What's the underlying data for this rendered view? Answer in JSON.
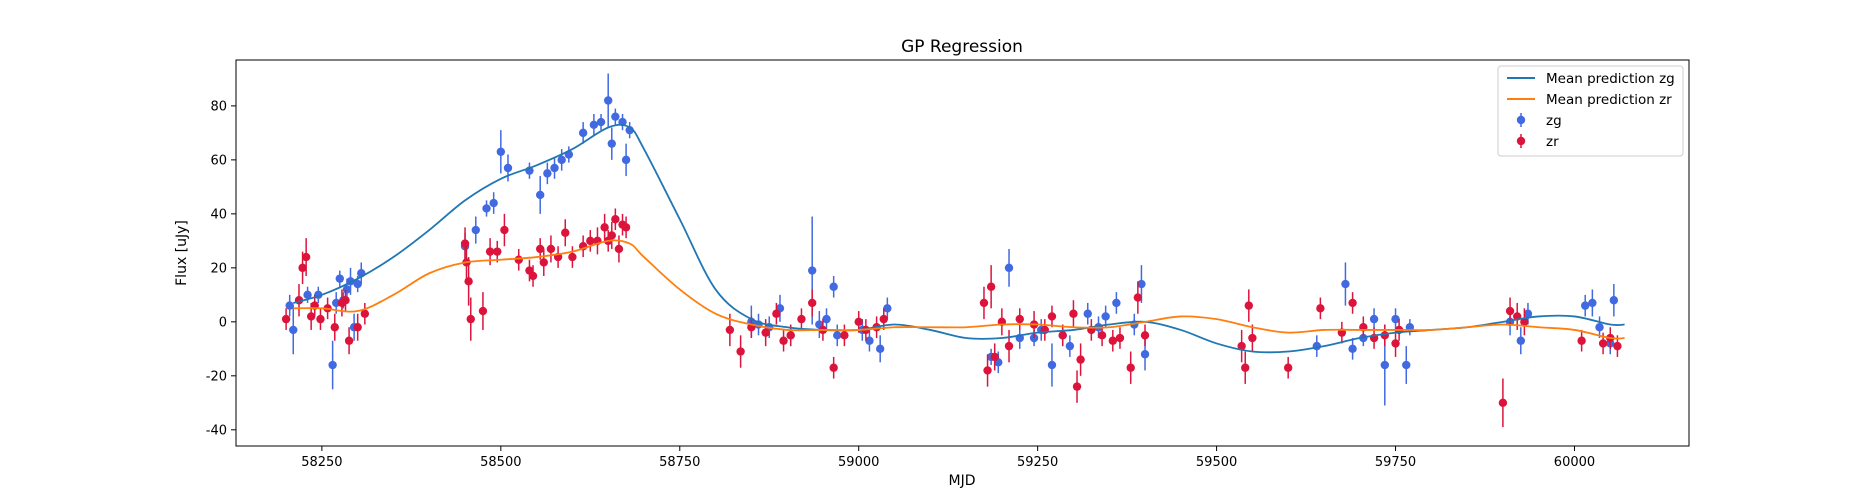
{
  "chart_data": {
    "type": "scatter",
    "title": "GP Regression",
    "xlabel": "MJD",
    "ylabel": "Flux [uJy]",
    "xlim": [
      58130,
      60160
    ],
    "ylim": [
      -46,
      97
    ],
    "xticks": [
      58250,
      58500,
      58750,
      59000,
      59250,
      59500,
      59750,
      60000
    ],
    "yticks": [
      -40,
      -20,
      0,
      20,
      40,
      60,
      80
    ],
    "grid": false,
    "legend_position": "top-right",
    "colors": {
      "zg_mean": "#1f77b4",
      "zr_mean": "#ff7f0e",
      "zg": "#4169e1",
      "zr": "#dc143c"
    },
    "mean_predictions": [
      {
        "name": "Mean prediction zg",
        "color": "#1f77b4",
        "x": [
          58210,
          58250,
          58300,
          58350,
          58400,
          58450,
          58500,
          58550,
          58600,
          58650,
          58680,
          58700,
          58750,
          58800,
          58850,
          58900,
          58950,
          59000,
          59050,
          59100,
          59150,
          59200,
          59250,
          59300,
          59350,
          59400,
          59450,
          59500,
          59550,
          59600,
          59650,
          59700,
          59750,
          59800,
          59850,
          59900,
          59950,
          60000,
          60050,
          60070
        ],
        "y": [
          7,
          10,
          16,
          24,
          34,
          45,
          53,
          58,
          64,
          72,
          72,
          64,
          38,
          12,
          1,
          -2,
          -3,
          -3,
          -1,
          -3,
          -6,
          -6,
          -4,
          -3,
          -1,
          0,
          -3,
          -8,
          -11,
          -11,
          -9,
          -6,
          -4,
          -3,
          -2,
          0,
          2,
          2,
          -1,
          -1
        ]
      },
      {
        "name": "Mean prediction zr",
        "color": "#ff7f0e",
        "x": [
          58210,
          58250,
          58300,
          58350,
          58400,
          58450,
          58500,
          58550,
          58600,
          58650,
          58680,
          58700,
          58750,
          58800,
          58850,
          58900,
          58950,
          59000,
          59050,
          59100,
          59150,
          59200,
          59250,
          59300,
          59350,
          59400,
          59450,
          59500,
          59550,
          59600,
          59650,
          59700,
          59750,
          59800,
          59850,
          59900,
          59950,
          60000,
          60050,
          60070
        ],
        "y": [
          5,
          5,
          4,
          10,
          18,
          22,
          23,
          24,
          26,
          30,
          29,
          24,
          12,
          3,
          -1,
          -3,
          -3,
          -3,
          -2,
          -2,
          -2,
          -1,
          -1,
          -2,
          -2,
          0,
          2,
          1,
          -2,
          -4,
          -3,
          -3,
          -3,
          -3,
          -2,
          -1,
          -2,
          -3,
          -6,
          -6
        ]
      }
    ],
    "series": [
      {
        "name": "zg",
        "color": "#4169e1",
        "points": [
          [
            58205,
            6,
            4
          ],
          [
            58210,
            -3,
            9
          ],
          [
            58230,
            10,
            3
          ],
          [
            58245,
            10,
            3
          ],
          [
            58265,
            -16,
            9
          ],
          [
            58270,
            7,
            4
          ],
          [
            58275,
            16,
            3
          ],
          [
            58280,
            8,
            3
          ],
          [
            58285,
            12,
            4
          ],
          [
            58290,
            15,
            5
          ],
          [
            58295,
            -2,
            5
          ],
          [
            58300,
            14,
            3
          ],
          [
            58305,
            18,
            4
          ],
          [
            58450,
            28,
            5
          ],
          [
            58465,
            34,
            5
          ],
          [
            58480,
            42,
            3
          ],
          [
            58490,
            44,
            4
          ],
          [
            58500,
            63,
            8
          ],
          [
            58510,
            57,
            5
          ],
          [
            58540,
            56,
            3
          ],
          [
            58555,
            47,
            7
          ],
          [
            58565,
            55,
            4
          ],
          [
            58575,
            57,
            4
          ],
          [
            58585,
            60,
            4
          ],
          [
            58595,
            62,
            3
          ],
          [
            58615,
            70,
            4
          ],
          [
            58630,
            73,
            4
          ],
          [
            58640,
            74,
            3
          ],
          [
            58650,
            82,
            10
          ],
          [
            58655,
            66,
            6
          ],
          [
            58660,
            76,
            3
          ],
          [
            58670,
            74,
            3
          ],
          [
            58675,
            60,
            6
          ],
          [
            58680,
            71,
            3
          ],
          [
            58850,
            0,
            6
          ],
          [
            58860,
            -1,
            4
          ],
          [
            58875,
            -2,
            4
          ],
          [
            58890,
            5,
            5
          ],
          [
            58905,
            -5,
            4
          ],
          [
            58935,
            19,
            20
          ],
          [
            58945,
            -1,
            5
          ],
          [
            58955,
            1,
            4
          ],
          [
            58965,
            13,
            4
          ],
          [
            58970,
            -5,
            4
          ],
          [
            59005,
            -3,
            4
          ],
          [
            59015,
            -7,
            4
          ],
          [
            59030,
            -10,
            5
          ],
          [
            59040,
            5,
            4
          ],
          [
            59185,
            -13,
            3
          ],
          [
            59195,
            -15,
            4
          ],
          [
            59210,
            20,
            7
          ],
          [
            59225,
            -6,
            4
          ],
          [
            59245,
            -6,
            3
          ],
          [
            59255,
            -3,
            4
          ],
          [
            59270,
            -16,
            8
          ],
          [
            59285,
            -5,
            4
          ],
          [
            59295,
            -9,
            4
          ],
          [
            59320,
            3,
            4
          ],
          [
            59335,
            -2,
            4
          ],
          [
            59345,
            2,
            4
          ],
          [
            59360,
            7,
            4
          ],
          [
            59385,
            -1,
            4
          ],
          [
            59395,
            14,
            7
          ],
          [
            59400,
            -12,
            6
          ],
          [
            59640,
            -9,
            4
          ],
          [
            59680,
            14,
            8
          ],
          [
            59690,
            -10,
            4
          ],
          [
            59705,
            -6,
            3
          ],
          [
            59720,
            1,
            4
          ],
          [
            59735,
            -16,
            15
          ],
          [
            59750,
            1,
            4
          ],
          [
            59765,
            -16,
            7
          ],
          [
            59770,
            -2,
            3
          ],
          [
            59910,
            0,
            5
          ],
          [
            59925,
            -7,
            5
          ],
          [
            59935,
            3,
            4
          ],
          [
            60015,
            6,
            4
          ],
          [
            60025,
            7,
            5
          ],
          [
            60035,
            -2,
            4
          ],
          [
            60050,
            -8,
            4
          ],
          [
            60055,
            8,
            6
          ]
        ]
      },
      {
        "name": "zr",
        "color": "#dc143c",
        "points": [
          [
            58200,
            1,
            4
          ],
          [
            58218,
            8,
            6
          ],
          [
            58223,
            20,
            6
          ],
          [
            58228,
            24,
            7
          ],
          [
            58235,
            2,
            5
          ],
          [
            58240,
            6,
            4
          ],
          [
            58248,
            1,
            4
          ],
          [
            58258,
            5,
            4
          ],
          [
            58268,
            -2,
            5
          ],
          [
            58278,
            7,
            5
          ],
          [
            58283,
            8,
            4
          ],
          [
            58288,
            -7,
            5
          ],
          [
            58300,
            -2,
            5
          ],
          [
            58310,
            3,
            4
          ],
          [
            58450,
            29,
            6
          ],
          [
            58452,
            22,
            6
          ],
          [
            58455,
            15,
            9
          ],
          [
            58458,
            1,
            8
          ],
          [
            58475,
            4,
            7
          ],
          [
            58485,
            26,
            5
          ],
          [
            58495,
            26,
            4
          ],
          [
            58505,
            34,
            6
          ],
          [
            58525,
            23,
            4
          ],
          [
            58540,
            19,
            4
          ],
          [
            58545,
            17,
            4
          ],
          [
            58555,
            27,
            4
          ],
          [
            58560,
            22,
            5
          ],
          [
            58570,
            27,
            5
          ],
          [
            58580,
            24,
            4
          ],
          [
            58590,
            33,
            5
          ],
          [
            58600,
            24,
            4
          ],
          [
            58615,
            28,
            4
          ],
          [
            58625,
            30,
            4
          ],
          [
            58635,
            30,
            5
          ],
          [
            58645,
            35,
            5
          ],
          [
            58650,
            30,
            4
          ],
          [
            58655,
            32,
            5
          ],
          [
            58660,
            38,
            4
          ],
          [
            58665,
            27,
            5
          ],
          [
            58670,
            36,
            4
          ],
          [
            58675,
            35,
            4
          ],
          [
            58820,
            -3,
            6
          ],
          [
            58835,
            -11,
            6
          ],
          [
            58850,
            -2,
            4
          ],
          [
            58870,
            -4,
            5
          ],
          [
            58885,
            3,
            4
          ],
          [
            58895,
            -7,
            4
          ],
          [
            58905,
            -5,
            4
          ],
          [
            58920,
            1,
            4
          ],
          [
            58935,
            7,
            5
          ],
          [
            58950,
            -3,
            4
          ],
          [
            58965,
            -17,
            4
          ],
          [
            58980,
            -5,
            4
          ],
          [
            59000,
            0,
            4
          ],
          [
            59010,
            -3,
            4
          ],
          [
            59025,
            -2,
            4
          ],
          [
            59035,
            1,
            4
          ],
          [
            59175,
            7,
            6
          ],
          [
            59180,
            -18,
            6
          ],
          [
            59185,
            13,
            8
          ],
          [
            59190,
            -13,
            5
          ],
          [
            59200,
            0,
            5
          ],
          [
            59210,
            -9,
            6
          ],
          [
            59225,
            1,
            4
          ],
          [
            59245,
            -1,
            5
          ],
          [
            59260,
            -3,
            4
          ],
          [
            59270,
            2,
            4
          ],
          [
            59285,
            -5,
            4
          ],
          [
            59300,
            3,
            5
          ],
          [
            59305,
            -24,
            6
          ],
          [
            59310,
            -14,
            6
          ],
          [
            59325,
            -3,
            4
          ],
          [
            59340,
            -5,
            4
          ],
          [
            59355,
            -7,
            4
          ],
          [
            59365,
            -6,
            4
          ],
          [
            59380,
            -17,
            6
          ],
          [
            59390,
            9,
            6
          ],
          [
            59400,
            -5,
            4
          ],
          [
            59535,
            -9,
            6
          ],
          [
            59540,
            -17,
            6
          ],
          [
            59545,
            6,
            6
          ],
          [
            59550,
            -6,
            5
          ],
          [
            59600,
            -17,
            4
          ],
          [
            59645,
            5,
            4
          ],
          [
            59675,
            -4,
            4
          ],
          [
            59690,
            7,
            4
          ],
          [
            59705,
            -2,
            4
          ],
          [
            59720,
            -6,
            4
          ],
          [
            59735,
            -5,
            4
          ],
          [
            59750,
            -8,
            5
          ],
          [
            59755,
            -3,
            4
          ],
          [
            59900,
            -30,
            9
          ],
          [
            59910,
            4,
            5
          ],
          [
            59920,
            2,
            5
          ],
          [
            59930,
            0,
            5
          ],
          [
            60010,
            -7,
            4
          ],
          [
            60040,
            -8,
            4
          ],
          [
            60050,
            -6,
            4
          ],
          [
            60060,
            -9,
            4
          ]
        ]
      }
    ]
  }
}
